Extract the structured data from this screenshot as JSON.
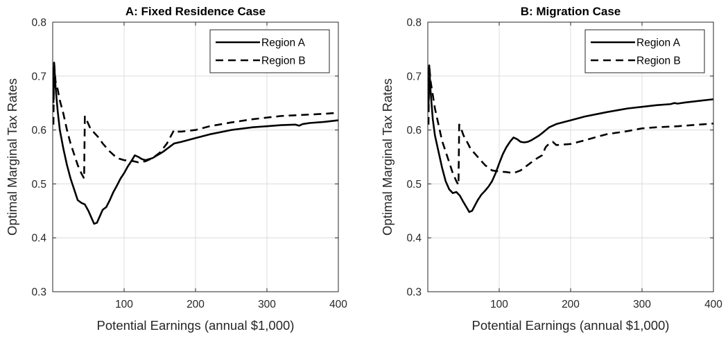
{
  "chart_data": [
    {
      "type": "line",
      "title": "A: Fixed Residence Case",
      "xlabel": "Potential Earnings (annual $1,000)",
      "ylabel": "Optimal Marginal Tax Rates",
      "xlim": [
        0,
        400
      ],
      "ylim": [
        0.3,
        0.8
      ],
      "xticks": [
        "100",
        "200",
        "300",
        "400"
      ],
      "yticks": [
        "0.3",
        "0.4",
        "0.5",
        "0.6",
        "0.7",
        "0.8"
      ],
      "grid": true,
      "legend_position": "top-right",
      "series": [
        {
          "name": "Region A",
          "style": "solid",
          "x": [
            1,
            2,
            4,
            7,
            10,
            15,
            20,
            25,
            30,
            35,
            40,
            45,
            50,
            55,
            58,
            62,
            66,
            70,
            75,
            80,
            85,
            90,
            95,
            100,
            105,
            110,
            115,
            120,
            125,
            130,
            135,
            140,
            145,
            150,
            155,
            160,
            170,
            180,
            200,
            220,
            250,
            280,
            300,
            320,
            340,
            345,
            350,
            360,
            380,
            400
          ],
          "y": [
            0.65,
            0.725,
            0.68,
            0.635,
            0.6,
            0.565,
            0.535,
            0.51,
            0.49,
            0.47,
            0.465,
            0.462,
            0.45,
            0.435,
            0.426,
            0.428,
            0.44,
            0.452,
            0.457,
            0.47,
            0.485,
            0.497,
            0.51,
            0.52,
            0.532,
            0.542,
            0.553,
            0.55,
            0.546,
            0.544,
            0.546,
            0.548,
            0.552,
            0.556,
            0.56,
            0.565,
            0.575,
            0.578,
            0.585,
            0.592,
            0.6,
            0.605,
            0.607,
            0.609,
            0.61,
            0.608,
            0.611,
            0.613,
            0.615,
            0.618
          ]
        },
        {
          "name": "Region B",
          "style": "dashed",
          "x": [
            1,
            2,
            4,
            7,
            10,
            15,
            20,
            25,
            30,
            35,
            40,
            44,
            45,
            47,
            52,
            58,
            65,
            70,
            80,
            90,
            100,
            110,
            120,
            130,
            140,
            150,
            160,
            170,
            175,
            180,
            200,
            220,
            250,
            280,
            300,
            320,
            350,
            380,
            400
          ],
          "y": [
            0.61,
            0.725,
            0.69,
            0.675,
            0.655,
            0.63,
            0.6,
            0.575,
            0.555,
            0.535,
            0.52,
            0.51,
            0.625,
            0.62,
            0.605,
            0.595,
            0.585,
            0.575,
            0.56,
            0.548,
            0.544,
            0.543,
            0.54,
            0.542,
            0.548,
            0.558,
            0.575,
            0.6,
            0.597,
            0.597,
            0.6,
            0.607,
            0.614,
            0.62,
            0.623,
            0.626,
            0.628,
            0.63,
            0.632
          ]
        }
      ]
    },
    {
      "type": "line",
      "title": "B: Migration Case",
      "xlabel": "Potential Earnings (annual $1,000)",
      "ylabel": "Optimal Marginal Tax Rates",
      "xlim": [
        0,
        400
      ],
      "ylim": [
        0.3,
        0.8
      ],
      "xticks": [
        "100",
        "200",
        "300",
        "400"
      ],
      "yticks": [
        "0.3",
        "0.4",
        "0.5",
        "0.6",
        "0.7",
        "0.8"
      ],
      "grid": true,
      "legend_position": "top-right",
      "series": [
        {
          "name": "Region A",
          "style": "solid",
          "x": [
            1,
            2,
            4,
            7,
            10,
            15,
            20,
            25,
            30,
            35,
            40,
            45,
            50,
            55,
            58,
            62,
            66,
            70,
            75,
            80,
            85,
            90,
            95,
            100,
            105,
            110,
            115,
            120,
            125,
            130,
            135,
            140,
            145,
            150,
            155,
            160,
            170,
            180,
            200,
            220,
            250,
            280,
            300,
            320,
            340,
            345,
            350,
            360,
            380,
            400
          ],
          "y": [
            0.64,
            0.72,
            0.67,
            0.62,
            0.59,
            0.56,
            0.53,
            0.505,
            0.49,
            0.483,
            0.485,
            0.478,
            0.466,
            0.455,
            0.448,
            0.45,
            0.46,
            0.47,
            0.48,
            0.487,
            0.495,
            0.505,
            0.52,
            0.538,
            0.555,
            0.568,
            0.578,
            0.586,
            0.583,
            0.578,
            0.577,
            0.578,
            0.581,
            0.585,
            0.589,
            0.594,
            0.605,
            0.611,
            0.618,
            0.625,
            0.633,
            0.64,
            0.643,
            0.646,
            0.648,
            0.65,
            0.649,
            0.651,
            0.654,
            0.657
          ]
        },
        {
          "name": "Region B",
          "style": "dashed",
          "x": [
            1,
            2,
            4,
            7,
            10,
            15,
            20,
            25,
            30,
            35,
            40,
            43,
            44,
            46,
            50,
            55,
            60,
            70,
            80,
            90,
            100,
            110,
            120,
            130,
            140,
            150,
            160,
            165,
            170,
            175,
            180,
            200,
            220,
            250,
            280,
            300,
            320,
            350,
            380,
            400
          ],
          "y": [
            0.61,
            0.72,
            0.69,
            0.665,
            0.64,
            0.61,
            0.58,
            0.56,
            0.54,
            0.52,
            0.505,
            0.498,
            0.61,
            0.605,
            0.59,
            0.578,
            0.565,
            0.55,
            0.535,
            0.525,
            0.523,
            0.522,
            0.52,
            0.525,
            0.535,
            0.545,
            0.553,
            0.568,
            0.575,
            0.578,
            0.572,
            0.574,
            0.581,
            0.592,
            0.598,
            0.603,
            0.605,
            0.607,
            0.61,
            0.612
          ]
        }
      ]
    }
  ]
}
